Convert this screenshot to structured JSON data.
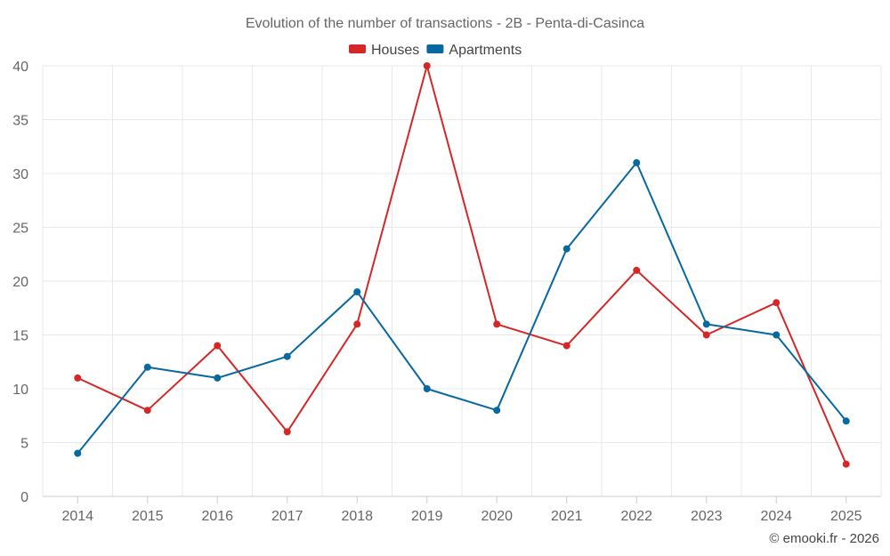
{
  "chart_data": {
    "type": "line",
    "title": "Evolution of the number of transactions - 2B - Penta-di-Casinca",
    "xlabel": "",
    "ylabel": "",
    "categories": [
      "2014",
      "2015",
      "2016",
      "2017",
      "2018",
      "2019",
      "2020",
      "2021",
      "2022",
      "2023",
      "2024",
      "2025"
    ],
    "series": [
      {
        "name": "Houses",
        "color": "#d62728",
        "values": [
          11,
          8,
          14,
          6,
          16,
          40,
          16,
          14,
          21,
          15,
          18,
          3
        ]
      },
      {
        "name": "Apartments",
        "color": "#0868a0",
        "values": [
          4,
          12,
          11,
          13,
          19,
          10,
          8,
          23,
          31,
          16,
          15,
          7
        ]
      }
    ],
    "ylim": [
      0,
      40
    ],
    "yticks": [
      "0",
      "5",
      "10",
      "15",
      "20",
      "25",
      "30",
      "35",
      "40"
    ],
    "grid": true,
    "legend": "top-center"
  },
  "credit": "© emooki.fr - 2026"
}
